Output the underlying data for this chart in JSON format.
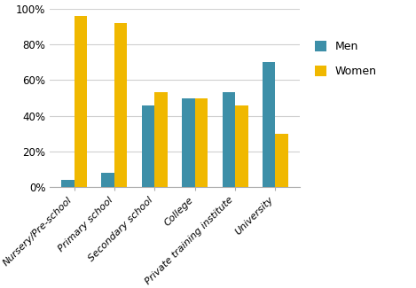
{
  "categories": [
    "Nursery/Pre-school",
    "Primary school",
    "Secondary school",
    "College",
    "Private training institute",
    "University"
  ],
  "men_values": [
    4,
    8,
    46,
    50,
    53,
    70
  ],
  "women_values": [
    96,
    92,
    53,
    50,
    46,
    30
  ],
  "men_color": "#3D8FA8",
  "women_color": "#F0B800",
  "ylim": [
    0,
    100
  ],
  "yticks": [
    0,
    20,
    40,
    60,
    80,
    100
  ],
  "ytick_labels": [
    "0%",
    "20%",
    "40%",
    "60%",
    "80%",
    "100%"
  ],
  "legend_labels": [
    "Men",
    "Women"
  ],
  "bar_width": 0.32,
  "grid_color": "#D0D0D0",
  "tick_fontsize": 8.5,
  "legend_fontsize": 9
}
